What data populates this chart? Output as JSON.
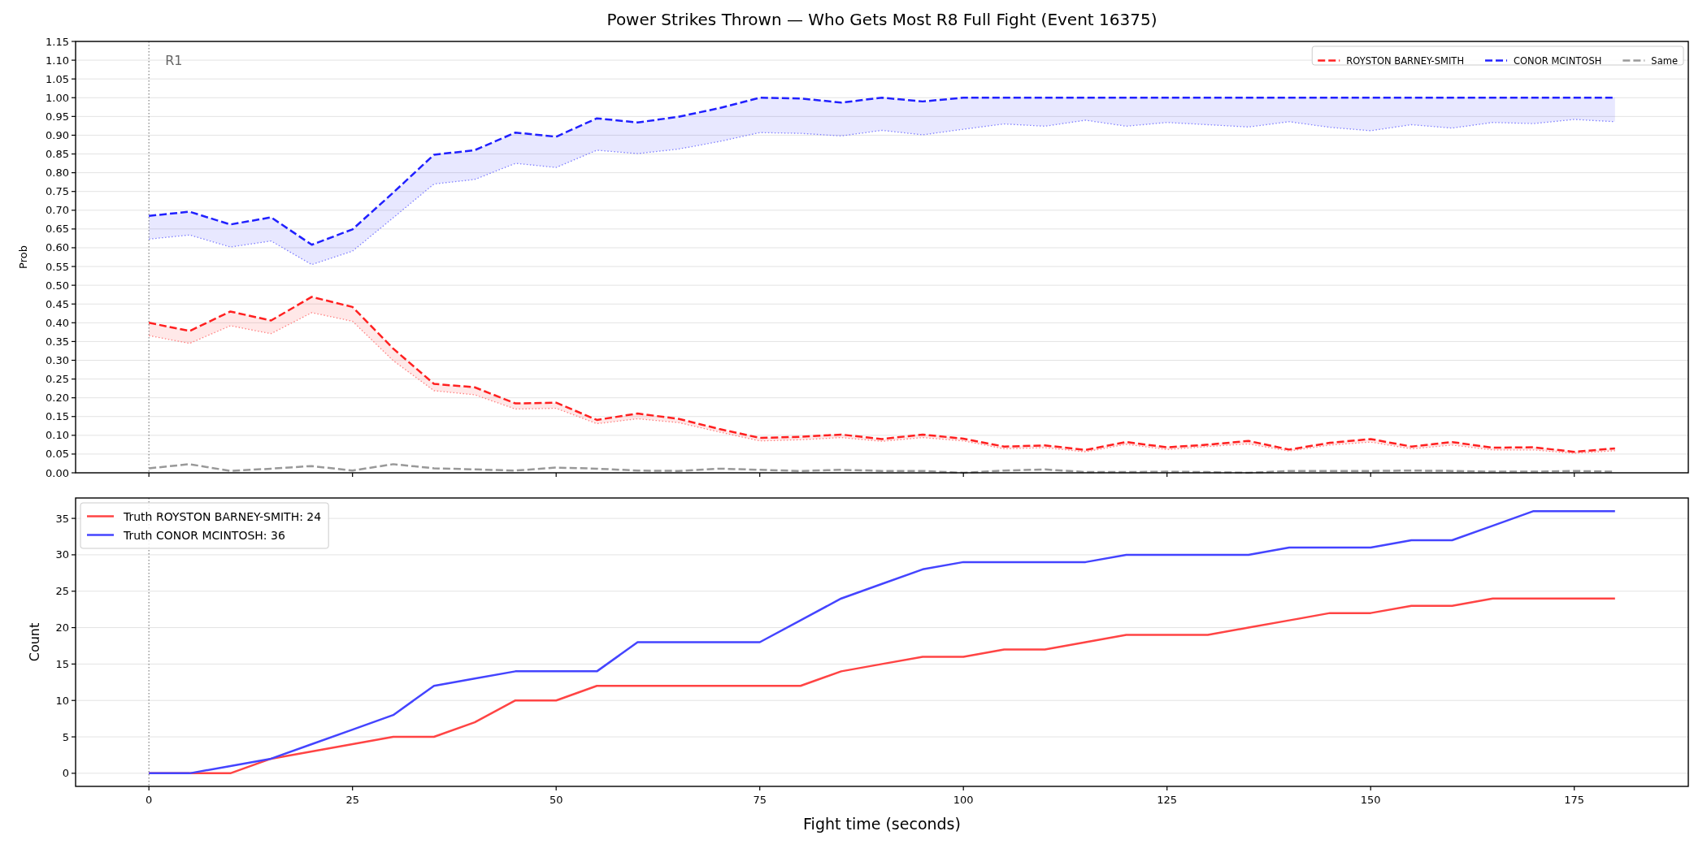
{
  "chart_data": [
    {
      "type": "line",
      "title": "Power Strikes Thrown — Who Gets Most R8 Full Fight (Event 16375)",
      "ylabel": "Prob",
      "x": [
        0,
        5,
        10,
        15,
        20,
        25,
        30,
        35,
        40,
        45,
        50,
        55,
        60,
        65,
        70,
        75,
        80,
        85,
        90,
        95,
        100,
        105,
        110,
        115,
        120,
        125,
        130,
        135,
        140,
        145,
        150,
        155,
        160,
        165,
        170,
        175,
        180
      ],
      "xlim": [
        -9,
        189
      ],
      "xticks": [
        0,
        25,
        50,
        75,
        100,
        125,
        150,
        175
      ],
      "ylim": [
        0,
        1.15
      ],
      "yticks": [
        {
          "value": 0,
          "label": "0.00"
        },
        {
          "value": 0.05,
          "label": "0.05"
        },
        {
          "value": 0.1,
          "label": "0.10"
        },
        {
          "value": 0.15,
          "label": "0.15"
        },
        {
          "value": 0.2,
          "label": "0.20"
        },
        {
          "value": 0.25,
          "label": "0.25"
        },
        {
          "value": 0.3,
          "label": "0.30"
        },
        {
          "value": 0.35,
          "label": "0.35"
        },
        {
          "value": 0.4,
          "label": "0.40"
        },
        {
          "value": 0.45,
          "label": "0.45"
        },
        {
          "value": 0.5,
          "label": "0.50"
        },
        {
          "value": 0.55,
          "label": "0.55"
        },
        {
          "value": 0.6,
          "label": "0.60"
        },
        {
          "value": 0.65,
          "label": "0.65"
        },
        {
          "value": 0.7,
          "label": "0.70"
        },
        {
          "value": 0.75,
          "label": "0.75"
        },
        {
          "value": 0.8,
          "label": "0.80"
        },
        {
          "value": 0.85,
          "label": "0.85"
        },
        {
          "value": 0.9,
          "label": "0.90"
        },
        {
          "value": 0.95,
          "label": "0.95"
        },
        {
          "value": 1,
          "label": "1.00"
        },
        {
          "value": 1.05,
          "label": "1.05"
        },
        {
          "value": 1.1,
          "label": "1.10"
        },
        {
          "value": 1.15,
          "label": "1.15"
        }
      ],
      "tick_labels": "y",
      "grid": "y",
      "legend": "top right",
      "line_style": "dashed",
      "ref_lines": [
        {
          "axis": "x",
          "value": 0,
          "label": "R1",
          "color": "#808080",
          "line_style": "dotted"
        }
      ],
      "series": [
        {
          "name": "ROYSTON BARNEY-SMITH",
          "color": "#ff2020",
          "values": [
            0.4,
            0.378,
            0.43,
            0.406,
            0.469,
            0.442,
            0.331,
            0.237,
            0.228,
            0.185,
            0.187,
            0.141,
            0.158,
            0.144,
            0.117,
            0.093,
            0.096,
            0.102,
            0.09,
            0.102,
            0.091,
            0.07,
            0.073,
            0.061,
            0.082,
            0.068,
            0.075,
            0.085,
            0.062,
            0.08,
            0.09,
            0.07,
            0.082,
            0.067,
            0.068,
            0.056,
            0.065
          ],
          "lower": [
            0.366,
            0.345,
            0.392,
            0.371,
            0.427,
            0.404,
            0.299,
            0.219,
            0.208,
            0.17,
            0.172,
            0.131,
            0.144,
            0.134,
            0.109,
            0.085,
            0.088,
            0.094,
            0.084,
            0.094,
            0.085,
            0.064,
            0.067,
            0.056,
            0.076,
            0.062,
            0.07,
            0.077,
            0.058,
            0.074,
            0.082,
            0.064,
            0.074,
            0.061,
            0.061,
            0.052,
            0.059
          ],
          "upper": [
            0.4,
            0.378,
            0.43,
            0.406,
            0.469,
            0.442,
            0.331,
            0.237,
            0.228,
            0.185,
            0.187,
            0.141,
            0.158,
            0.144,
            0.117,
            0.093,
            0.096,
            0.102,
            0.09,
            0.102,
            0.091,
            0.07,
            0.073,
            0.061,
            0.082,
            0.068,
            0.075,
            0.085,
            0.062,
            0.08,
            0.09,
            0.07,
            0.082,
            0.067,
            0.068,
            0.056,
            0.065
          ]
        },
        {
          "color": "#ff8080",
          "line_style": "dotted",
          "values": [
            0.366,
            0.345,
            0.392,
            0.371,
            0.427,
            0.404,
            0.299,
            0.219,
            0.208,
            0.17,
            0.172,
            0.131,
            0.144,
            0.134,
            0.109,
            0.085,
            0.088,
            0.094,
            0.084,
            0.094,
            0.085,
            0.064,
            0.067,
            0.056,
            0.076,
            0.062,
            0.07,
            0.077,
            0.058,
            0.074,
            0.082,
            0.064,
            0.074,
            0.061,
            0.061,
            0.052,
            0.059
          ]
        },
        {
          "name": "CONOR MCINTOSH",
          "color": "#2020ff",
          "values": [
            0.685,
            0.696,
            0.662,
            0.681,
            0.608,
            0.649,
            0.747,
            0.848,
            0.86,
            0.907,
            0.896,
            0.945,
            0.934,
            0.949,
            0.972,
            1.0,
            0.998,
            0.987,
            1.0,
            0.99,
            1.0,
            1.0,
            1.0,
            1.0,
            1.0,
            1.0,
            1.0,
            1.0,
            1.0,
            1.0,
            1.0,
            1.0,
            1.0,
            1.0,
            1.0,
            1.0,
            1.0
          ],
          "lower": [
            0.623,
            0.634,
            0.602,
            0.618,
            0.555,
            0.591,
            0.68,
            0.77,
            0.782,
            0.825,
            0.814,
            0.86,
            0.851,
            0.863,
            0.883,
            0.907,
            0.905,
            0.898,
            0.913,
            0.901,
            0.916,
            0.93,
            0.924,
            0.94,
            0.924,
            0.934,
            0.928,
            0.922,
            0.936,
            0.921,
            0.912,
            0.928,
            0.919,
            0.934,
            0.931,
            0.942,
            0.936
          ],
          "upper": [
            0.685,
            0.696,
            0.662,
            0.681,
            0.608,
            0.649,
            0.747,
            0.848,
            0.86,
            0.907,
            0.896,
            0.945,
            0.934,
            0.949,
            0.972,
            1.0,
            0.998,
            0.987,
            1.0,
            0.99,
            1.0,
            1.0,
            1.0,
            1.0,
            1.0,
            1.0,
            1.0,
            1.0,
            1.0,
            1.0,
            1.0,
            1.0,
            1.0,
            1.0,
            1.0,
            1.0,
            1.0
          ]
        },
        {
          "color": "#8080ff",
          "line_style": "dotted",
          "values": [
            0.623,
            0.634,
            0.602,
            0.618,
            0.555,
            0.591,
            0.68,
            0.77,
            0.782,
            0.825,
            0.814,
            0.86,
            0.851,
            0.863,
            0.883,
            0.907,
            0.905,
            0.898,
            0.913,
            0.901,
            0.916,
            0.93,
            0.924,
            0.94,
            0.924,
            0.934,
            0.928,
            0.922,
            0.936,
            0.921,
            0.912,
            0.928,
            0.919,
            0.934,
            0.931,
            0.942,
            0.936
          ]
        },
        {
          "name": "Same",
          "color": "#999999",
          "values": [
            0.012,
            0.023,
            0.005,
            0.011,
            0.018,
            0.006,
            0.023,
            0.012,
            0.009,
            0.006,
            0.014,
            0.011,
            0.006,
            0.005,
            0.011,
            0.008,
            0.005,
            0.008,
            0.005,
            0.005,
            0.0,
            0.006,
            0.009,
            0.002,
            0.002,
            0.003,
            0.002,
            0.0,
            0.005,
            0.005,
            0.005,
            0.006,
            0.005,
            0.003,
            0.003,
            0.005,
            0.003
          ]
        }
      ]
    },
    {
      "type": "line",
      "xlabel": "Fight time (seconds)",
      "ylabel": "Count",
      "x": [
        0,
        5,
        10,
        15,
        20,
        25,
        30,
        35,
        40,
        45,
        50,
        55,
        60,
        65,
        70,
        75,
        80,
        85,
        90,
        95,
        100,
        105,
        110,
        115,
        120,
        125,
        130,
        135,
        140,
        145,
        150,
        155,
        160,
        165,
        170,
        175,
        180
      ],
      "xlim": [
        -9,
        189
      ],
      "xticks": [
        0,
        25,
        50,
        75,
        100,
        125,
        150,
        175
      ],
      "ylim": [
        -1.8,
        37.8
      ],
      "yticks": [
        0,
        5,
        10,
        15,
        20,
        25,
        30,
        35
      ],
      "grid": "y",
      "legend": "top left",
      "line_style": "solid",
      "ref_lines": [
        {
          "axis": "x",
          "value": 0,
          "color": "#808080",
          "line_style": "dotted"
        }
      ],
      "series": [
        {
          "name": "Truth ROYSTON BARNEY-SMITH: 24",
          "color": "#ff4444",
          "values": [
            0,
            0,
            0,
            2,
            3,
            4,
            5,
            5,
            7,
            10,
            10,
            12,
            12,
            12,
            12,
            12,
            12,
            14,
            15,
            16,
            16,
            17,
            17,
            18,
            19,
            19,
            19,
            20,
            21,
            22,
            22,
            23,
            23,
            24,
            24,
            24,
            24
          ]
        },
        {
          "name": "Truth CONOR MCINTOSH: 36",
          "color": "#4444ff",
          "values": [
            0,
            0,
            1,
            2,
            4,
            6,
            8,
            12,
            13,
            14,
            14,
            14,
            18,
            18,
            18,
            18,
            21,
            24,
            26,
            28,
            29,
            29,
            29,
            29,
            30,
            30,
            30,
            30,
            31,
            31,
            31,
            32,
            32,
            34,
            36,
            36,
            36
          ]
        }
      ]
    }
  ]
}
